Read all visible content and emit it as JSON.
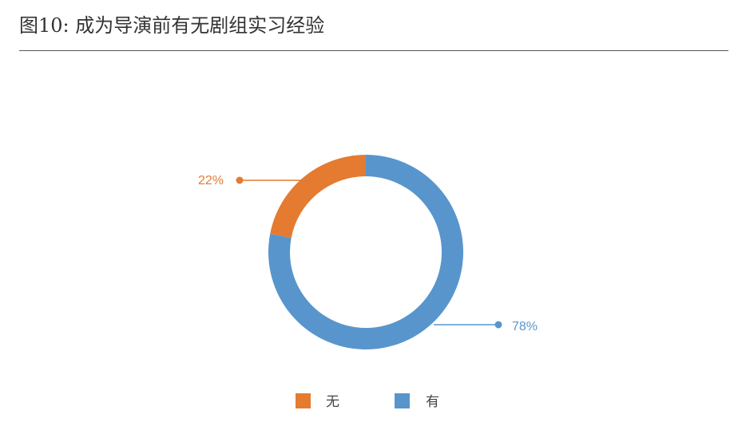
{
  "title": "图10: 成为导演前有无剧组实习经验",
  "chart_data": {
    "type": "pie",
    "donut": true,
    "title": "图10: 成为导演前有无剧组实习经验",
    "slices": [
      {
        "label": "无",
        "value": 22,
        "value_label": "22%",
        "color": "#E47B31"
      },
      {
        "label": "有",
        "value": 78,
        "value_label": "78%",
        "color": "#5895CC"
      }
    ],
    "legend": {
      "placement": "bottom",
      "entries": [
        "无",
        "有"
      ]
    }
  }
}
